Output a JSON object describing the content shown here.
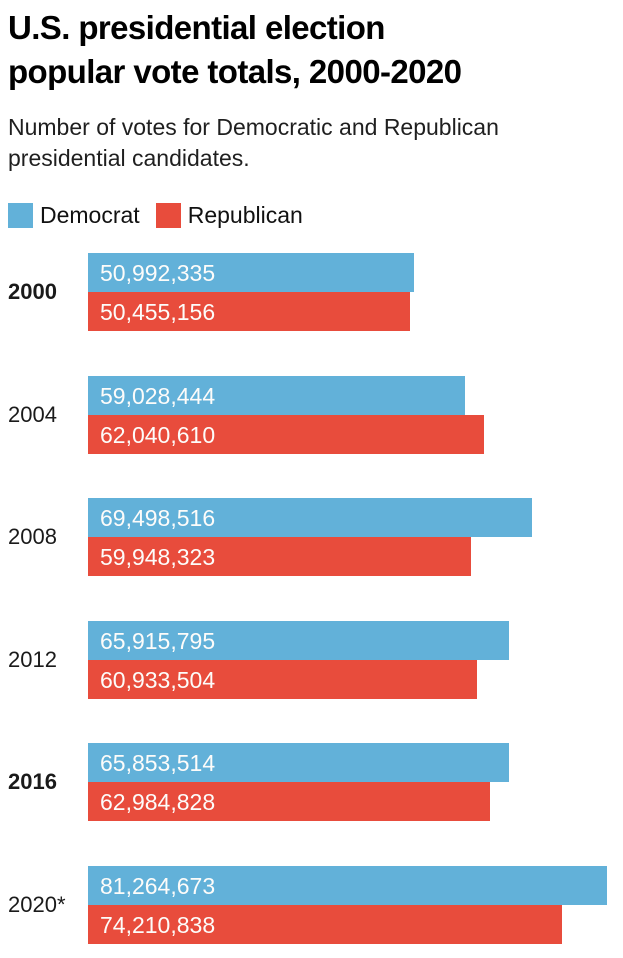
{
  "header": {
    "title": "U.S. presidential election popular vote totals, 2000-2020",
    "title_lines": [
      "U.S. presidential election",
      "popular vote totals, 2000-2020"
    ],
    "subtitle": "Number of votes for Democratic and Republican presidential candidates."
  },
  "legend": {
    "items": [
      {
        "label": "Democrat",
        "color": "#62B1D9"
      },
      {
        "label": "Republican",
        "color": "#E84C3C"
      }
    ]
  },
  "chart_data": {
    "type": "bar",
    "orientation": "horizontal",
    "title": "U.S. presidential election popular vote totals, 2000-2020",
    "subtitle": "Number of votes for Democratic and Republican presidential candidates.",
    "categories": [
      "2000",
      "2004",
      "2008",
      "2012",
      "2016",
      "2020*"
    ],
    "emphasized_categories": [
      "2000",
      "2016"
    ],
    "series": [
      {
        "name": "Democrat",
        "color": "#62B1D9",
        "values": [
          50992335,
          59028444,
          69498516,
          65915795,
          65853514,
          81264673
        ],
        "value_labels": [
          "50,992,335",
          "59,028,444",
          "69,498,516",
          "65,915,795",
          "65,853,514",
          "81,264,673"
        ]
      },
      {
        "name": "Republican",
        "color": "#E84C3C",
        "values": [
          50455156,
          62040610,
          59948323,
          60933504,
          62984828,
          74210838
        ],
        "value_labels": [
          "50,455,156",
          "62,040,610",
          "59,948,323",
          "60,933,504",
          "62,984,828",
          "74,210,838"
        ]
      }
    ],
    "xlim": [
      0,
      83500000
    ],
    "grid": false,
    "legend_position": "top",
    "value_labels_inside": true,
    "label_color": "#FDFCFA"
  }
}
